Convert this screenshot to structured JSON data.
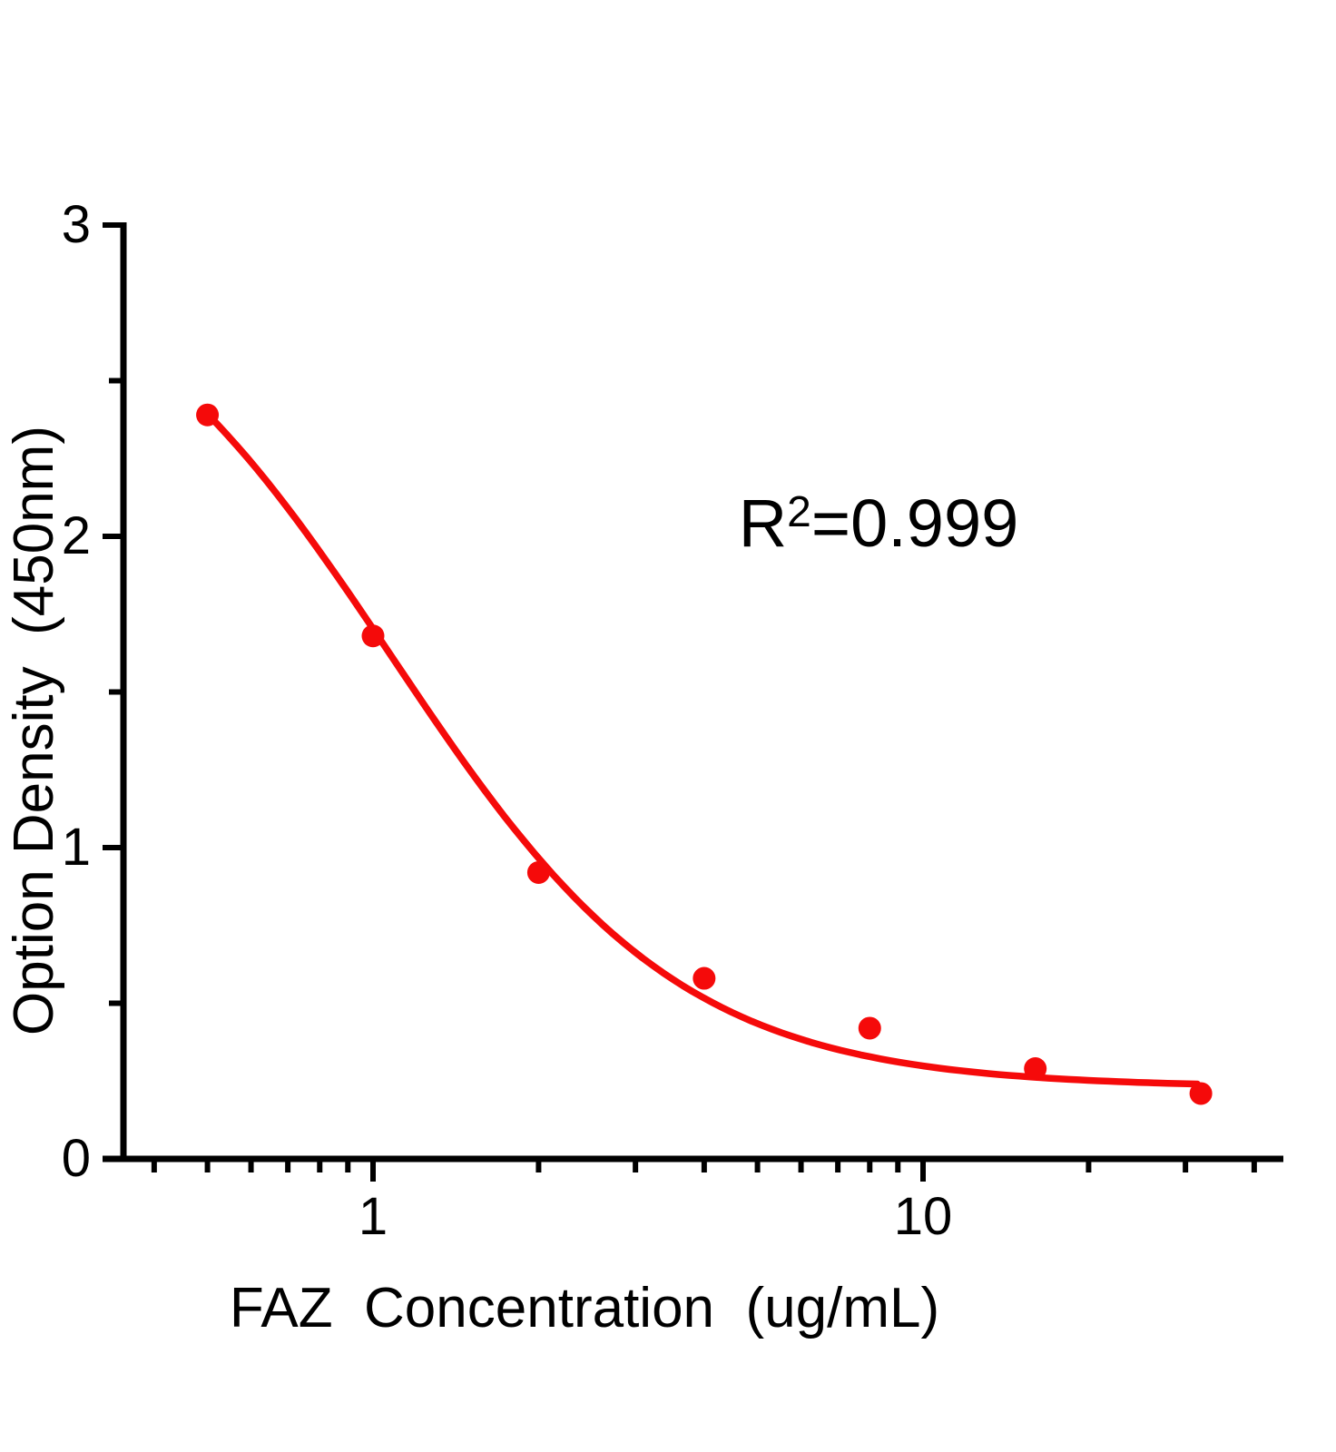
{
  "page": {
    "background": "#ffffff"
  },
  "chart_data": {
    "type": "scatter",
    "title": "",
    "xlabel": "FAZ  Concentration  (ug/mL)",
    "ylabel": "Option Density  (450nm)",
    "x_scale": "log",
    "y_scale": "linear",
    "xlim": [
      0.32,
      45
    ],
    "ylim": [
      0,
      3
    ],
    "grid": false,
    "legend": "none",
    "axis_color": "#000000",
    "accent_color": "#f50a0a",
    "x_major_ticks": {
      "values": [
        1,
        10
      ],
      "labels": [
        "1",
        "10"
      ]
    },
    "x_minor_ticks": [
      0.4,
      0.5,
      0.6,
      0.7,
      0.8,
      0.9,
      2,
      3,
      4,
      5,
      6,
      7,
      8,
      9,
      20,
      30,
      40
    ],
    "y_major_ticks": {
      "values": [
        0,
        1,
        2,
        3
      ],
      "labels": [
        "0",
        "1",
        "2",
        "3"
      ]
    },
    "y_minor_ticks": [
      0.5,
      1.5,
      2.5
    ],
    "series": [
      {
        "name": "standard-points",
        "type": "scatter",
        "color": "#f50a0a",
        "points": [
          {
            "x": 0.5,
            "y": 2.39
          },
          {
            "x": 1,
            "y": 1.68
          },
          {
            "x": 2,
            "y": 0.92
          },
          {
            "x": 4,
            "y": 0.58
          },
          {
            "x": 8,
            "y": 0.42
          },
          {
            "x": 16,
            "y": 0.29
          },
          {
            "x": 32,
            "y": 0.21
          }
        ]
      },
      {
        "name": "fit-curve",
        "type": "line",
        "color": "#f50a0a",
        "fit_4pl": {
          "a": 3.0,
          "b": 1.65,
          "c": 1.08,
          "d": 0.23
        },
        "x_start": 0.5,
        "x_end": 32
      }
    ],
    "annotation": {
      "base": "R",
      "exponent": "2",
      "rest": "=0.999"
    }
  }
}
